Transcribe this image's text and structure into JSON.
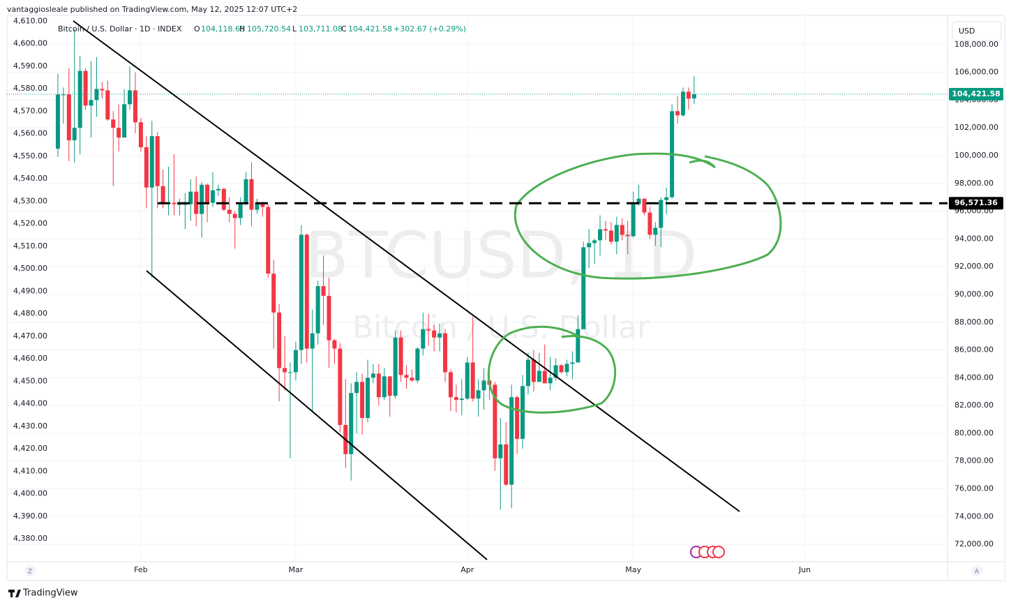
{
  "header": {
    "publisher": "vantaggiosleale published on TradingView.com, May 12, 2025 12:07 UTC+2",
    "symbol": "Bitcoin / U.S. Dollar · 1D · INDEX",
    "ohlc": [
      {
        "key": "O",
        "value": "104,118.65"
      },
      {
        "key": "H",
        "value": "105,720.54"
      },
      {
        "key": "L",
        "value": "103,711.08"
      },
      {
        "key": "C",
        "value": "104,421.58"
      }
    ],
    "change": "+302.67 (+0.29%)"
  },
  "watermark": {
    "symbol": "BTCUSD, 1D",
    "description": "Bitcoin / U.S. Dollar"
  },
  "currency": "USD",
  "scale_buttons": [
    "Z",
    "A"
  ],
  "brand": "TradingView",
  "chart_data": {
    "type": "candlestick",
    "series": [
      {
        "up_color": "#089981",
        "down_color": "#f23645",
        "x": [
          17,
          18,
          19,
          20,
          21,
          22,
          23,
          24,
          25,
          26,
          27,
          28,
          29,
          30,
          31,
          32,
          33,
          34,
          35,
          36,
          37,
          38,
          39,
          40,
          41,
          42,
          43,
          44,
          45,
          46,
          47,
          48,
          49,
          50,
          51,
          52,
          53,
          54,
          55,
          56,
          57,
          58,
          59,
          60,
          61,
          62,
          63,
          64,
          65,
          66,
          67,
          68,
          69,
          70,
          71,
          72,
          73,
          74,
          75,
          76,
          77,
          78,
          79,
          80,
          81,
          82,
          83,
          84,
          85,
          86,
          87,
          88,
          89,
          90,
          91,
          92,
          93,
          94,
          95,
          96,
          97,
          98,
          99,
          100,
          101,
          102,
          103,
          104,
          105,
          106,
          107,
          108,
          109,
          110,
          111,
          112,
          113,
          114,
          115,
          116,
          117,
          118,
          119,
          120,
          121,
          122,
          123,
          124,
          125,
          126,
          127,
          128,
          129,
          130,
          131,
          132
        ],
        "open": [
          100500,
          104400,
          104400,
          101100,
          102000,
          106100,
          103600,
          104000,
          104800,
          104700,
          102600,
          102000,
          101300,
          103700,
          104700,
          102400,
          100600,
          97700,
          101400,
          97800,
          96600,
          96600,
          96500,
          96500,
          96500,
          97400,
          95800,
          97900,
          96600,
          97500,
          97600,
          96100,
          95800,
          95500,
          96600,
          98300,
          96100,
          96600,
          96300,
          91500,
          88700,
          84700,
          84400,
          84400,
          86000,
          94300,
          86100,
          87200,
          90600,
          89900,
          86700,
          86100,
          80600,
          78500,
          82900,
          83700,
          81100,
          84000,
          84300,
          82600,
          84100,
          82700,
          86900,
          84200,
          84000,
          83800,
          86100,
          87500,
          87400,
          86900,
          87200,
          84400,
          82600,
          82400,
          82500,
          85100,
          82500,
          83100,
          83800,
          83500,
          78200,
          79200,
          76300,
          82600,
          79600,
          83400,
          85300,
          83700,
          84500,
          83600,
          84000,
          84900,
          84400,
          85000,
          85100,
          87500,
          93400,
          93700,
          93900,
          94700,
          94600,
          93800,
          95000,
          94300,
          94200,
          96500,
          96900,
          95900,
          94300,
          94800,
          96800,
          97000,
          103200,
          102900,
          104600,
          104118.65
        ],
        "high": [
          105900,
          104900,
          106300,
          109100,
          107200,
          106300,
          106800,
          107100,
          105300,
          105400,
          103200,
          103700,
          104800,
          106400,
          106000,
          102700,
          101400,
          102500,
          101700,
          99000,
          99200,
          100100,
          96900,
          97300,
          98300,
          98500,
          98100,
          98000,
          98800,
          97900,
          97700,
          97000,
          96000,
          97000,
          98800,
          99500,
          96900,
          96700,
          96500,
          92500,
          89300,
          87000,
          85100,
          86600,
          95000,
          94400,
          88900,
          91000,
          92800,
          91200,
          86800,
          86500,
          83900,
          83600,
          84400,
          84300,
          85300,
          85000,
          85000,
          84700,
          84100,
          87400,
          87400,
          84900,
          84600,
          86200,
          88700,
          88600,
          87800,
          87900,
          87500,
          84600,
          83500,
          83900,
          85500,
          88400,
          83900,
          84700,
          84200,
          83700,
          81100,
          80800,
          83500,
          82700,
          84200,
          85800,
          86000,
          85800,
          86400,
          85500,
          85400,
          85000,
          85300,
          85900,
          88500,
          93800,
          94700,
          94000,
          95700,
          95300,
          95200,
          95600,
          95500,
          95300,
          97400,
          97900,
          96900,
          96300,
          95200,
          97000,
          97700,
          103700,
          104300,
          104900,
          104900,
          105720.54
        ],
        "low": [
          99900,
          102300,
          99600,
          99500,
          100100,
          103300,
          101300,
          102800,
          104100,
          102500,
          97800,
          100300,
          101300,
          103300,
          101600,
          100300,
          96200,
          91200,
          96200,
          96200,
          95700,
          95700,
          95700,
          94700,
          95300,
          94900,
          94100,
          95200,
          96300,
          97100,
          96000,
          95200,
          93300,
          95000,
          96400,
          94900,
          95800,
          95600,
          91200,
          86100,
          82300,
          83100,
          78200,
          83800,
          85000,
          85100,
          81500,
          86400,
          87800,
          84700,
          85000,
          80100,
          77500,
          76600,
          80000,
          79900,
          80800,
          83600,
          82000,
          82400,
          81200,
          82500,
          83700,
          83200,
          83700,
          83600,
          85600,
          86300,
          85900,
          85900,
          83700,
          81600,
          81500,
          81300,
          82400,
          82300,
          81200,
          81700,
          82400,
          77300,
          74500,
          76200,
          74600,
          78500,
          78900,
          82800,
          83000,
          83700,
          83600,
          83100,
          83800,
          84300,
          84100,
          83900,
          85100,
          87500,
          91900,
          92200,
          92800,
          93900,
          93600,
          92900,
          93900,
          92900,
          94100,
          96400,
          95700,
          94000,
          93500,
          93400,
          95800,
          96900,
          102300,
          102800,
          103300,
          103711.08
        ],
        "close": [
          104400,
          104400,
          101100,
          102000,
          106100,
          103600,
          104000,
          104800,
          104700,
          102600,
          102000,
          101300,
          103700,
          104700,
          102400,
          100600,
          97700,
          101400,
          97800,
          96600,
          96600,
          96500,
          96500,
          96500,
          97400,
          95800,
          97900,
          96600,
          97500,
          97600,
          96100,
          95800,
          95500,
          96600,
          98300,
          96100,
          96600,
          96300,
          91500,
          88700,
          84700,
          84400,
          84400,
          86000,
          94300,
          86100,
          87200,
          90600,
          89900,
          86700,
          86100,
          80600,
          78500,
          82900,
          83700,
          81100,
          84000,
          84300,
          82600,
          84100,
          82700,
          86900,
          84200,
          84000,
          83800,
          86100,
          87500,
          87400,
          86900,
          87200,
          84400,
          82600,
          82400,
          82500,
          85100,
          82500,
          83100,
          83800,
          83500,
          78200,
          79200,
          76300,
          82600,
          79600,
          83400,
          85300,
          83700,
          84500,
          83600,
          84000,
          84900,
          84400,
          85000,
          85100,
          87500,
          93400,
          93700,
          93900,
          94700,
          94600,
          93800,
          95000,
          94300,
          94200,
          96500,
          96900,
          95900,
          94300,
          94800,
          96800,
          97000,
          103200,
          102900,
          104600,
          104100,
          104421.58
        ]
      }
    ],
    "xlim": [
      7.8,
      177.8
    ],
    "xticks": [
      {
        "value": 32,
        "label": "Feb"
      },
      {
        "value": 60,
        "label": "Mar"
      },
      {
        "value": 91,
        "label": "Apr"
      },
      {
        "value": 121,
        "label": "May"
      },
      {
        "value": 152,
        "label": "Jun"
      }
    ],
    "ylim": [
      70750,
      110100
    ],
    "yticks": [
      {
        "value": 72000,
        "label": "72,000.00"
      },
      {
        "value": 74000,
        "label": "74,000.00"
      },
      {
        "value": 76000,
        "label": "76,000.00"
      },
      {
        "value": 78000,
        "label": "78,000.00"
      },
      {
        "value": 80000,
        "label": "80,000.00"
      },
      {
        "value": 82000,
        "label": "82,000.00"
      },
      {
        "value": 84000,
        "label": "84,000.00"
      },
      {
        "value": 86000,
        "label": "86,000.00"
      },
      {
        "value": 88000,
        "label": "88,000.00"
      },
      {
        "value": 90000,
        "label": "90,000.00"
      },
      {
        "value": 92000,
        "label": "92,000.00"
      },
      {
        "value": 94000,
        "label": "94,000.00"
      },
      {
        "value": 96000,
        "label": "96,000.00"
      },
      {
        "value": 98000,
        "label": "98,000.00"
      },
      {
        "value": 100000,
        "label": "100,000.00"
      },
      {
        "value": 102000,
        "label": "102,000.00"
      },
      {
        "value": 104000,
        "label": "104,000.00"
      },
      {
        "value": 106000,
        "label": "106,000.00"
      },
      {
        "value": 108000,
        "label": "108,000.00"
      }
    ],
    "y2lim": [
      4369.8,
      4612.6
    ],
    "y2ticks": [
      {
        "value": 4380,
        "label": "4,380.00"
      },
      {
        "value": 4390,
        "label": "4,390.00"
      },
      {
        "value": 4400,
        "label": "4,400.00"
      },
      {
        "value": 4410,
        "label": "4,410.00"
      },
      {
        "value": 4420,
        "label": "4,420.00"
      },
      {
        "value": 4430,
        "label": "4,430.00"
      },
      {
        "value": 4440,
        "label": "4,440.00"
      },
      {
        "value": 4450,
        "label": "4,450.00"
      },
      {
        "value": 4460,
        "label": "4,460.00"
      },
      {
        "value": 4470,
        "label": "4,470.00"
      },
      {
        "value": 4480,
        "label": "4,480.00"
      },
      {
        "value": 4490,
        "label": "4,490.00"
      },
      {
        "value": 4500,
        "label": "4,500.00"
      },
      {
        "value": 4510,
        "label": "4,510.00"
      },
      {
        "value": 4520,
        "label": "4,520.00"
      },
      {
        "value": 4530,
        "label": "4,530.00"
      },
      {
        "value": 4540,
        "label": "4,540.00"
      },
      {
        "value": 4550,
        "label": "4,550.00"
      },
      {
        "value": 4560,
        "label": "4,560.00"
      },
      {
        "value": 4570,
        "label": "4,570.00"
      },
      {
        "value": 4580,
        "label": "4,580.00"
      },
      {
        "value": 4590,
        "label": "4,590.00"
      },
      {
        "value": 4600,
        "label": "4,600.00"
      },
      {
        "value": 4610,
        "label": "4,610.00"
      }
    ],
    "grid": true,
    "last_price": {
      "value": 104421.58,
      "label": "104,421.58",
      "color": "#089981"
    },
    "horizontal_line": {
      "value": 96571.36,
      "label": "96,571.36",
      "color": "#000000"
    }
  }
}
